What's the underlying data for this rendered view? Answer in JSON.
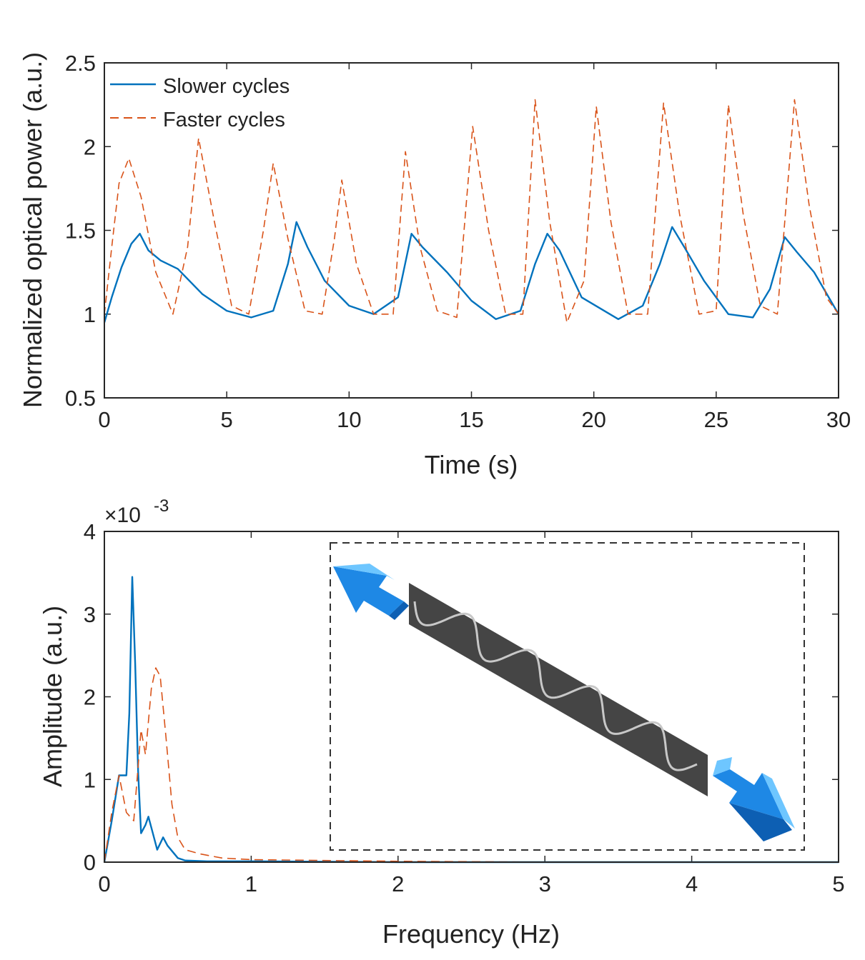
{
  "chart_data": [
    {
      "type": "line",
      "title": "",
      "xlabel": "Time (s)",
      "ylabel": "Normalized optical power (a.u.)",
      "xlim": [
        0,
        30
      ],
      "ylim": [
        0.5,
        2.5
      ],
      "xticks": [
        0,
        5,
        10,
        15,
        20,
        25,
        30
      ],
      "yticks": [
        0.5,
        1,
        1.5,
        2,
        2.5
      ],
      "ytick_labels": [
        "0.5",
        "1",
        "1.5",
        "2",
        "2.5"
      ],
      "grid": false,
      "legend_position": "top-left",
      "series": [
        {
          "name": "Slower cycles",
          "style": "solid",
          "color": "#0072BD",
          "period": 5.25,
          "x": [
            0,
            0.3,
            0.7,
            1.1,
            1.45,
            1.8,
            2.3,
            3.0,
            4.0,
            5.0,
            6.0,
            6.9,
            7.5,
            7.85,
            8.3,
            9.0,
            10.0,
            11.0,
            12.0,
            12.55,
            13.0,
            14.0,
            15.0,
            16.0,
            17.0,
            17.6,
            18.1,
            18.6,
            19.5,
            21.0,
            22.0,
            22.7,
            23.2,
            23.7,
            24.5,
            25.5,
            26.5,
            27.2,
            27.8,
            28.3,
            29.0,
            30.0
          ],
          "y": [
            0.95,
            1.1,
            1.28,
            1.42,
            1.48,
            1.38,
            1.32,
            1.27,
            1.12,
            1.02,
            0.98,
            1.02,
            1.3,
            1.55,
            1.4,
            1.2,
            1.05,
            1.0,
            1.1,
            1.48,
            1.4,
            1.25,
            1.08,
            0.97,
            1.02,
            1.3,
            1.48,
            1.38,
            1.1,
            0.97,
            1.05,
            1.3,
            1.52,
            1.4,
            1.2,
            1.0,
            0.98,
            1.15,
            1.46,
            1.37,
            1.25,
            1.0
          ]
        },
        {
          "name": "Faster cycles",
          "style": "dashed",
          "color": "#D95319",
          "peaks": [
            [
              1.0,
              1.93
            ],
            [
              3.85,
              2.05
            ],
            [
              6.9,
              1.9
            ],
            [
              9.7,
              1.8
            ],
            [
              12.3,
              1.97
            ],
            [
              15.05,
              2.12
            ],
            [
              17.6,
              2.28
            ],
            [
              20.1,
              2.24
            ],
            [
              22.85,
              2.26
            ],
            [
              25.5,
              2.25
            ],
            [
              28.2,
              2.28
            ]
          ],
          "x": [
            0,
            0.3,
            0.6,
            1.0,
            1.5,
            2.1,
            2.8,
            3.4,
            3.85,
            4.5,
            5.2,
            5.9,
            6.5,
            6.9,
            7.5,
            8.2,
            8.9,
            9.4,
            9.7,
            10.3,
            11.0,
            11.8,
            12.3,
            12.9,
            13.6,
            14.4,
            15.05,
            15.7,
            16.4,
            17.1,
            17.6,
            18.2,
            18.9,
            19.6,
            20.1,
            20.7,
            21.4,
            22.2,
            22.85,
            23.5,
            24.3,
            25.0,
            25.5,
            26.1,
            26.8,
            27.5,
            28.2,
            28.8,
            29.5,
            30.0
          ],
          "y": [
            1.0,
            1.4,
            1.78,
            1.93,
            1.7,
            1.25,
            1.0,
            1.4,
            2.05,
            1.55,
            1.05,
            1.0,
            1.5,
            1.9,
            1.45,
            1.02,
            1.0,
            1.45,
            1.8,
            1.3,
            1.0,
            1.0,
            1.97,
            1.4,
            1.02,
            0.98,
            2.12,
            1.5,
            1.0,
            1.0,
            2.28,
            1.55,
            0.95,
            1.2,
            2.24,
            1.55,
            1.0,
            1.0,
            2.26,
            1.6,
            1.0,
            1.02,
            2.25,
            1.6,
            1.05,
            1.0,
            2.28,
            1.65,
            1.1,
            1.0
          ]
        }
      ]
    },
    {
      "type": "line",
      "title": "",
      "xlabel": "Frequency (Hz)",
      "ylabel": "Amplitude (a.u.)",
      "y_exponent": "×10",
      "y_exponent_power": "-3",
      "xlim": [
        0,
        5
      ],
      "ylim": [
        0,
        4
      ],
      "xticks": [
        0,
        1,
        2,
        3,
        4,
        5
      ],
      "yticks": [
        0,
        1,
        2,
        3,
        4
      ],
      "grid": false,
      "series": [
        {
          "name": "Slower cycles",
          "style": "solid",
          "color": "#0072BD",
          "x": [
            0,
            0.05,
            0.1,
            0.15,
            0.17,
            0.19,
            0.21,
            0.23,
            0.25,
            0.28,
            0.3,
            0.33,
            0.36,
            0.4,
            0.43,
            0.5,
            0.55,
            0.7,
            1.0,
            2.0,
            3.0,
            4.0,
            5.0
          ],
          "y": [
            0.0,
            0.5,
            1.05,
            1.05,
            1.8,
            3.45,
            2.4,
            1.1,
            0.35,
            0.45,
            0.55,
            0.35,
            0.15,
            0.3,
            0.2,
            0.05,
            0.02,
            0.01,
            0.01,
            0.0,
            0.0,
            0.0,
            0.0
          ]
        },
        {
          "name": "Faster cycles",
          "style": "dashed",
          "color": "#D95319",
          "x": [
            0,
            0.05,
            0.1,
            0.15,
            0.2,
            0.25,
            0.28,
            0.32,
            0.35,
            0.38,
            0.42,
            0.46,
            0.5,
            0.55,
            0.65,
            0.8,
            1.0,
            1.5,
            2.0,
            3.0,
            4.0,
            5.0
          ],
          "y": [
            0.0,
            0.6,
            1.05,
            0.6,
            0.5,
            1.6,
            1.3,
            2.1,
            2.35,
            2.25,
            1.5,
            0.7,
            0.3,
            0.15,
            0.1,
            0.05,
            0.03,
            0.02,
            0.01,
            0.0,
            0.0,
            0.0
          ]
        }
      ],
      "inset": {
        "description": "schematic of stretched strip with embedded sinusoidal fiber",
        "strip_color": "#454545",
        "fiber_color": "#c8c8c8",
        "arrow_color": "#1e88e5",
        "arrow_highlight": "#6ec6ff"
      }
    }
  ]
}
